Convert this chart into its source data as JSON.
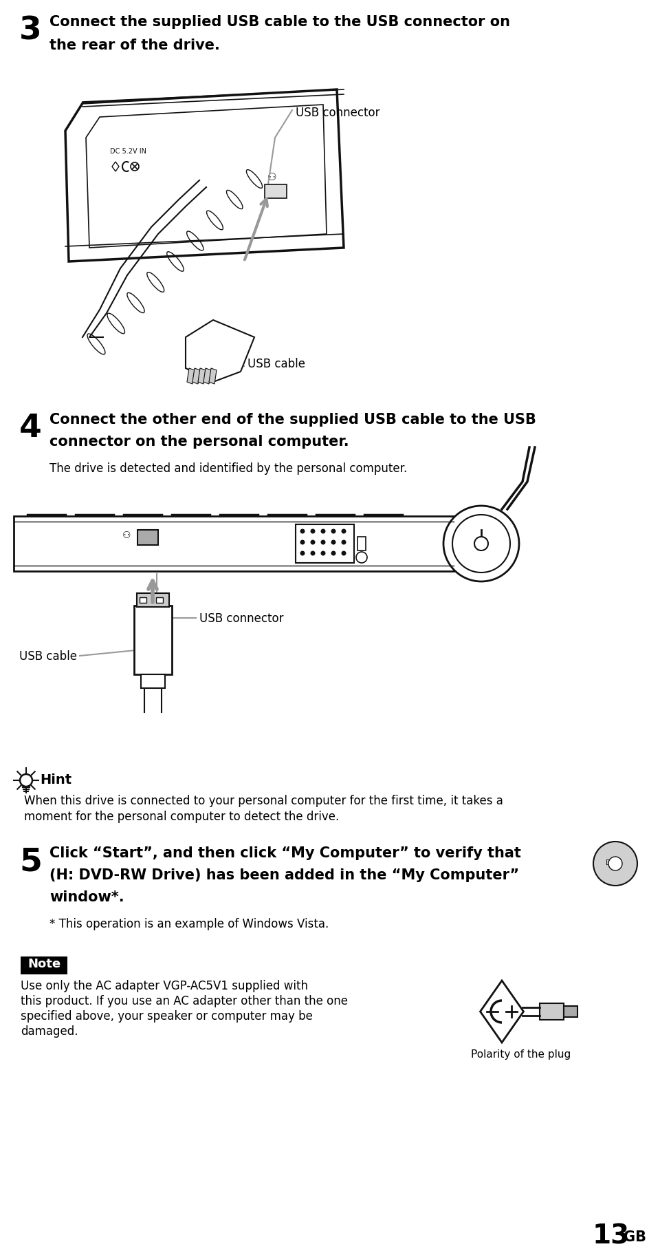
{
  "bg_color": "#ffffff",
  "text_color": "#000000",
  "step3_number": "3",
  "step3_text_line1": "Connect the supplied USB cable to the USB connector on",
  "step3_text_line2": "the rear of the drive.",
  "step4_number": "4",
  "step4_text_line1": "Connect the other end of the supplied USB cable to the USB",
  "step4_text_line2": "connector on the personal computer.",
  "step4_subtext": "The drive is detected and identified by the personal computer.",
  "step5_number": "5",
  "step5_text_line1": "Click “Start”, and then click “My Computer” to verify that",
  "step5_text_line2": "(H: DVD-RW Drive) has been added in the “My Computer”",
  "step5_text_line3": "window*.",
  "step5_footnote": "* This operation is an example of Windows Vista.",
  "label_usb_connector_1": "USB connector",
  "label_usb_cable_1": "USB cable",
  "label_usb_connector_2": "USB connector",
  "label_usb_cable_2": "USB cable",
  "hint_title": "Hint",
  "hint_text_line1": "When this drive is connected to your personal computer for the first time, it takes a",
  "hint_text_line2": "moment for the personal computer to detect the drive.",
  "note_title": "Note",
  "note_text_line1": "Use only the AC adapter VGP-AC5V1 supplied with",
  "note_text_line2": "this product. If you use an AC adapter other than the one",
  "note_text_line3": "specified above, your speaker or computer may be",
  "note_text_line4": "damaged.",
  "label_polarity": "Polarity of the plug",
  "page_number": "13",
  "page_suffix": "GB"
}
